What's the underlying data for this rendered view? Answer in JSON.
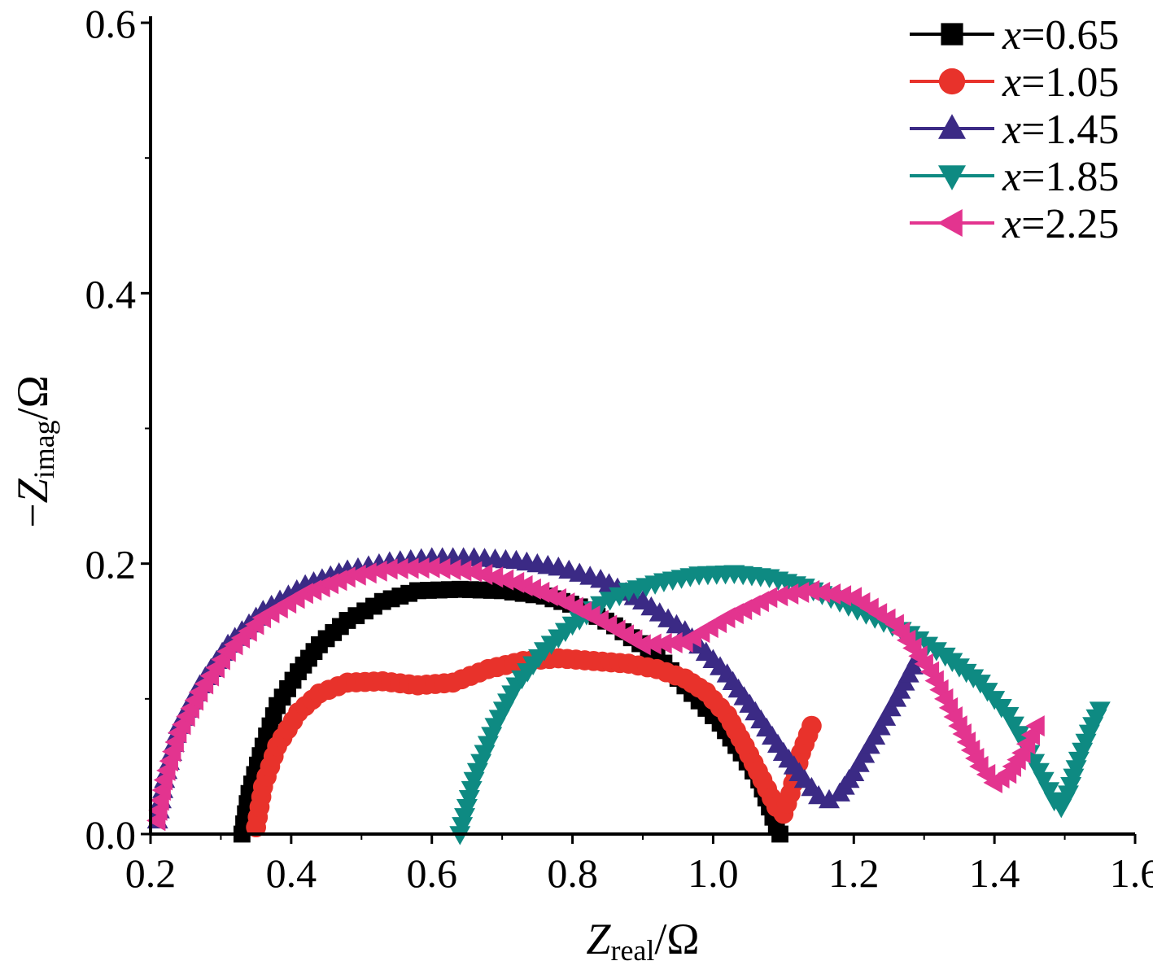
{
  "chart_data": {
    "type": "scatter",
    "title": "",
    "xlabel": {
      "main": "Z",
      "sub": "real",
      "unit": "/Ω"
    },
    "ylabel": {
      "prefix": "−",
      "main": "Z",
      "sub": "imag",
      "unit": "/Ω"
    },
    "xlim": [
      0.2,
      1.6
    ],
    "ylim": [
      0.0,
      0.6
    ],
    "xticks": [
      "0.2",
      "0.4",
      "0.6",
      "0.8",
      "1.0",
      "1.2",
      "1.4",
      "1.6"
    ],
    "yticks": [
      "0.0",
      "0.2",
      "0.4",
      "0.6"
    ],
    "grid": false,
    "legend_position": "top-right",
    "series": [
      {
        "name": "x=0.65",
        "label_var": "x",
        "label_val": "=0.65",
        "color": "#000000",
        "marker": "square",
        "x": [
          0.33,
          0.34,
          0.36,
          0.38,
          0.41,
          0.44,
          0.48,
          0.53,
          0.58,
          0.64,
          0.7,
          0.76,
          0.81,
          0.86,
          0.92,
          0.97,
          1.01,
          1.04,
          1.065,
          1.08,
          1.09,
          1.095
        ],
        "y": [
          0.0,
          0.03,
          0.065,
          0.095,
          0.12,
          0.14,
          0.158,
          0.172,
          0.18,
          0.181,
          0.18,
          0.176,
          0.168,
          0.154,
          0.132,
          0.104,
          0.082,
          0.06,
          0.04,
          0.02,
          0.005,
          0.0
        ]
      },
      {
        "name": "x=1.05",
        "label_var": "x",
        "label_val": "=1.05",
        "color": "#e8322b",
        "marker": "circle",
        "x": [
          0.35,
          0.36,
          0.38,
          0.41,
          0.44,
          0.48,
          0.53,
          0.58,
          0.63,
          0.68,
          0.73,
          0.78,
          0.83,
          0.88,
          0.92,
          0.96,
          0.99,
          1.02,
          1.045,
          1.07,
          1.09,
          1.1,
          1.11,
          1.125,
          1.14
        ],
        "y": [
          0.005,
          0.035,
          0.065,
          0.09,
          0.104,
          0.112,
          0.113,
          0.11,
          0.112,
          0.122,
          0.128,
          0.13,
          0.128,
          0.126,
          0.122,
          0.115,
          0.105,
          0.088,
          0.065,
          0.04,
          0.02,
          0.015,
          0.03,
          0.06,
          0.08
        ]
      },
      {
        "name": "x=1.45",
        "label_var": "x",
        "label_val": "=1.45",
        "color": "#3b2a85",
        "marker": "triangle-up",
        "x": [
          0.21,
          0.22,
          0.24,
          0.27,
          0.31,
          0.36,
          0.42,
          0.48,
          0.54,
          0.6,
          0.66,
          0.72,
          0.78,
          0.84,
          0.9,
          0.96,
          1.02,
          1.06,
          1.1,
          1.13,
          1.15,
          1.165,
          1.18,
          1.2,
          1.23,
          1.26,
          1.29
        ],
        "y": [
          0.01,
          0.04,
          0.08,
          0.11,
          0.14,
          0.165,
          0.184,
          0.195,
          0.201,
          0.204,
          0.204,
          0.202,
          0.197,
          0.188,
          0.172,
          0.15,
          0.118,
          0.09,
          0.06,
          0.04,
          0.028,
          0.025,
          0.03,
          0.045,
          0.072,
          0.1,
          0.13
        ]
      },
      {
        "name": "x=1.85",
        "label_var": "x",
        "label_val": "=1.85",
        "color": "#0e8a82",
        "marker": "triangle-down",
        "x": [
          0.64,
          0.66,
          0.69,
          0.72,
          0.76,
          0.8,
          0.84,
          0.88,
          0.93,
          0.98,
          1.03,
          1.08,
          1.13,
          1.18,
          1.23,
          1.28,
          1.33,
          1.38,
          1.42,
          1.45,
          1.47,
          1.485,
          1.495,
          1.505,
          1.52,
          1.535,
          1.55
        ],
        "y": [
          0.0,
          0.04,
          0.08,
          0.11,
          0.136,
          0.155,
          0.17,
          0.18,
          0.187,
          0.192,
          0.193,
          0.19,
          0.183,
          0.172,
          0.16,
          0.148,
          0.132,
          0.112,
          0.088,
          0.06,
          0.04,
          0.025,
          0.02,
          0.03,
          0.055,
          0.075,
          0.092
        ]
      },
      {
        "name": "x=2.25",
        "label_var": "x",
        "label_val": "=2.25",
        "color": "#e3348f",
        "marker": "triangle-left",
        "x": [
          0.21,
          0.22,
          0.24,
          0.27,
          0.31,
          0.36,
          0.42,
          0.48,
          0.54,
          0.6,
          0.66,
          0.72,
          0.78,
          0.84,
          0.9,
          0.96,
          1.02,
          1.08,
          1.14,
          1.2,
          1.26,
          1.31,
          1.35,
          1.38,
          1.4,
          1.42,
          1.44,
          1.46
        ],
        "y": [
          0.01,
          0.04,
          0.075,
          0.105,
          0.135,
          0.16,
          0.178,
          0.19,
          0.196,
          0.197,
          0.194,
          0.186,
          0.174,
          0.158,
          0.14,
          0.142,
          0.16,
          0.175,
          0.18,
          0.175,
          0.155,
          0.12,
          0.08,
          0.05,
          0.038,
          0.045,
          0.06,
          0.08
        ]
      }
    ]
  }
}
